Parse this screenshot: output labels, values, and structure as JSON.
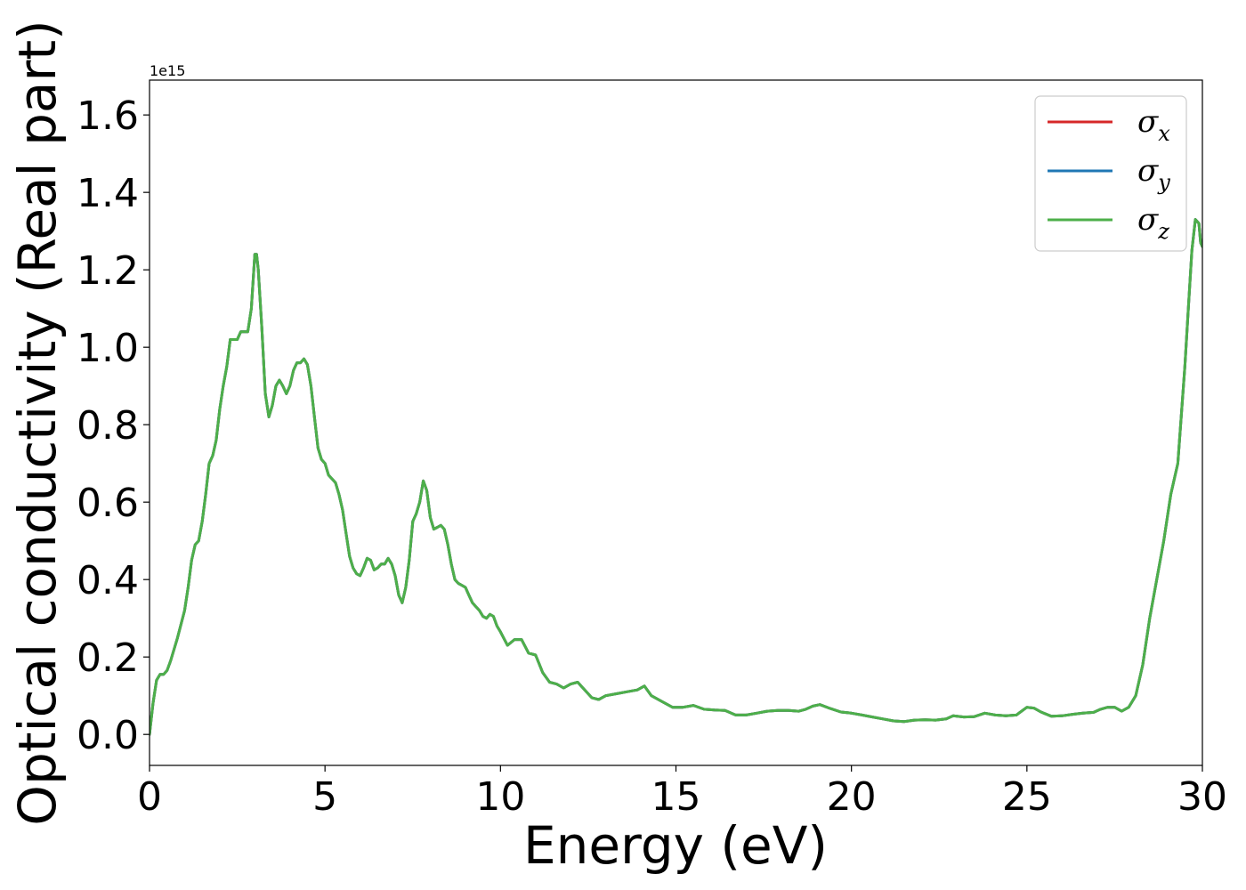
{
  "chart_data": {
    "type": "line",
    "xlabel": "Energy (eV)",
    "ylabel": "Optical conductivity (Real part)",
    "y_offset_text": "1e15",
    "xlim": [
      0,
      30
    ],
    "ylim": [
      -0.08,
      1.69
    ],
    "x_ticks": [
      0,
      5,
      10,
      15,
      20,
      25,
      30
    ],
    "y_ticks": [
      0.0,
      0.2,
      0.4,
      0.6,
      0.8,
      1.0,
      1.2,
      1.4,
      1.6
    ],
    "x_tick_labels": [
      "0",
      "5",
      "10",
      "15",
      "20",
      "25",
      "30"
    ],
    "y_tick_labels": [
      "0.0",
      "0.2",
      "0.4",
      "0.6",
      "0.8",
      "1.0",
      "1.2",
      "1.4",
      "1.6"
    ],
    "grid": false,
    "legend_position": "top-right",
    "x": [
      0.0,
      0.1,
      0.2,
      0.3,
      0.4,
      0.5,
      0.6,
      0.8,
      1.0,
      1.1,
      1.2,
      1.3,
      1.4,
      1.5,
      1.6,
      1.7,
      1.8,
      1.9,
      2.0,
      2.1,
      2.2,
      2.3,
      2.4,
      2.5,
      2.6,
      2.7,
      2.8,
      2.9,
      3.0,
      3.05,
      3.1,
      3.2,
      3.3,
      3.4,
      3.5,
      3.6,
      3.7,
      3.8,
      3.9,
      4.0,
      4.1,
      4.2,
      4.3,
      4.4,
      4.5,
      4.6,
      4.7,
      4.8,
      4.9,
      5.0,
      5.1,
      5.2,
      5.3,
      5.4,
      5.5,
      5.6,
      5.7,
      5.8,
      5.9,
      6.0,
      6.1,
      6.2,
      6.3,
      6.4,
      6.5,
      6.6,
      6.7,
      6.8,
      6.9,
      7.0,
      7.1,
      7.2,
      7.3,
      7.4,
      7.5,
      7.6,
      7.7,
      7.8,
      7.9,
      8.0,
      8.1,
      8.2,
      8.3,
      8.4,
      8.5,
      8.6,
      8.7,
      8.8,
      8.9,
      9.0,
      9.1,
      9.2,
      9.3,
      9.4,
      9.5,
      9.6,
      9.7,
      9.8,
      9.9,
      10.0,
      10.2,
      10.4,
      10.6,
      10.8,
      11.0,
      11.2,
      11.4,
      11.6,
      11.8,
      12.0,
      12.2,
      12.4,
      12.6,
      12.8,
      13.0,
      13.3,
      13.6,
      13.9,
      14.1,
      14.3,
      14.6,
      14.9,
      15.2,
      15.5,
      15.8,
      16.1,
      16.4,
      16.7,
      17.0,
      17.3,
      17.6,
      17.9,
      18.2,
      18.5,
      18.7,
      18.9,
      19.1,
      19.4,
      19.7,
      20.0,
      20.3,
      20.6,
      20.9,
      21.2,
      21.5,
      21.8,
      22.1,
      22.4,
      22.7,
      22.9,
      23.2,
      23.5,
      23.8,
      24.1,
      24.4,
      24.7,
      25.0,
      25.2,
      25.4,
      25.7,
      26.0,
      26.3,
      26.6,
      26.9,
      27.1,
      27.3,
      27.5,
      27.7,
      27.9,
      28.1,
      28.3,
      28.5,
      28.7,
      28.9,
      29.1,
      29.3,
      29.5,
      29.6,
      29.7,
      29.8,
      29.9,
      29.95,
      30.0
    ],
    "series": [
      {
        "name": "σx",
        "color": "#d62728",
        "values": [
          0.0,
          0.08,
          0.14,
          0.155,
          0.155,
          0.165,
          0.19,
          0.25,
          0.32,
          0.38,
          0.45,
          0.49,
          0.5,
          0.55,
          0.62,
          0.7,
          0.72,
          0.76,
          0.84,
          0.9,
          0.95,
          1.02,
          1.02,
          1.02,
          1.04,
          1.04,
          1.04,
          1.1,
          1.24,
          1.24,
          1.2,
          1.05,
          0.88,
          0.82,
          0.85,
          0.9,
          0.915,
          0.9,
          0.88,
          0.9,
          0.94,
          0.96,
          0.96,
          0.97,
          0.955,
          0.9,
          0.82,
          0.74,
          0.71,
          0.7,
          0.67,
          0.66,
          0.65,
          0.62,
          0.58,
          0.52,
          0.46,
          0.43,
          0.415,
          0.41,
          0.43,
          0.455,
          0.45,
          0.425,
          0.43,
          0.44,
          0.44,
          0.455,
          0.44,
          0.41,
          0.36,
          0.34,
          0.38,
          0.45,
          0.55,
          0.57,
          0.6,
          0.655,
          0.63,
          0.56,
          0.53,
          0.535,
          0.54,
          0.53,
          0.49,
          0.44,
          0.4,
          0.39,
          0.385,
          0.38,
          0.36,
          0.34,
          0.33,
          0.32,
          0.305,
          0.3,
          0.31,
          0.305,
          0.28,
          0.265,
          0.23,
          0.245,
          0.245,
          0.21,
          0.205,
          0.16,
          0.135,
          0.13,
          0.12,
          0.13,
          0.135,
          0.115,
          0.095,
          0.09,
          0.1,
          0.105,
          0.11,
          0.115,
          0.125,
          0.1,
          0.085,
          0.07,
          0.07,
          0.075,
          0.065,
          0.063,
          0.062,
          0.05,
          0.05,
          0.055,
          0.06,
          0.062,
          0.062,
          0.06,
          0.065,
          0.073,
          0.077,
          0.067,
          0.058,
          0.055,
          0.05,
          0.045,
          0.04,
          0.035,
          0.033,
          0.037,
          0.038,
          0.037,
          0.04,
          0.048,
          0.045,
          0.046,
          0.055,
          0.05,
          0.048,
          0.05,
          0.07,
          0.068,
          0.058,
          0.047,
          0.048,
          0.052,
          0.055,
          0.057,
          0.065,
          0.07,
          0.07,
          0.06,
          0.07,
          0.1,
          0.18,
          0.3,
          0.4,
          0.5,
          0.62,
          0.7,
          0.95,
          1.1,
          1.25,
          1.33,
          1.32,
          1.27,
          1.26
        ]
      },
      {
        "name": "σy",
        "color": "#1f77b4",
        "values": [
          0.0,
          0.08,
          0.14,
          0.155,
          0.155,
          0.165,
          0.19,
          0.25,
          0.32,
          0.38,
          0.45,
          0.49,
          0.5,
          0.55,
          0.62,
          0.7,
          0.72,
          0.76,
          0.84,
          0.9,
          0.95,
          1.02,
          1.02,
          1.02,
          1.04,
          1.04,
          1.04,
          1.1,
          1.24,
          1.24,
          1.2,
          1.05,
          0.88,
          0.82,
          0.85,
          0.9,
          0.915,
          0.9,
          0.88,
          0.9,
          0.94,
          0.96,
          0.96,
          0.97,
          0.955,
          0.9,
          0.82,
          0.74,
          0.71,
          0.7,
          0.67,
          0.66,
          0.65,
          0.62,
          0.58,
          0.52,
          0.46,
          0.43,
          0.415,
          0.41,
          0.43,
          0.455,
          0.45,
          0.425,
          0.43,
          0.44,
          0.44,
          0.455,
          0.44,
          0.41,
          0.36,
          0.34,
          0.38,
          0.45,
          0.55,
          0.57,
          0.6,
          0.655,
          0.63,
          0.56,
          0.53,
          0.535,
          0.54,
          0.53,
          0.49,
          0.44,
          0.4,
          0.39,
          0.385,
          0.38,
          0.36,
          0.34,
          0.33,
          0.32,
          0.305,
          0.3,
          0.31,
          0.305,
          0.28,
          0.265,
          0.23,
          0.245,
          0.245,
          0.21,
          0.205,
          0.16,
          0.135,
          0.13,
          0.12,
          0.13,
          0.135,
          0.115,
          0.095,
          0.09,
          0.1,
          0.105,
          0.11,
          0.115,
          0.125,
          0.1,
          0.085,
          0.07,
          0.07,
          0.075,
          0.065,
          0.063,
          0.062,
          0.05,
          0.05,
          0.055,
          0.06,
          0.062,
          0.062,
          0.06,
          0.065,
          0.073,
          0.077,
          0.067,
          0.058,
          0.055,
          0.05,
          0.045,
          0.04,
          0.035,
          0.033,
          0.037,
          0.038,
          0.037,
          0.04,
          0.048,
          0.045,
          0.046,
          0.055,
          0.05,
          0.048,
          0.05,
          0.07,
          0.068,
          0.058,
          0.047,
          0.048,
          0.052,
          0.055,
          0.057,
          0.065,
          0.07,
          0.07,
          0.06,
          0.07,
          0.1,
          0.18,
          0.3,
          0.4,
          0.5,
          0.62,
          0.7,
          0.95,
          1.1,
          1.25,
          1.33,
          1.32,
          1.27,
          1.26
        ]
      },
      {
        "name": "σz",
        "color": "#4daf4a",
        "values": [
          0.0,
          0.08,
          0.14,
          0.155,
          0.155,
          0.165,
          0.19,
          0.25,
          0.32,
          0.38,
          0.45,
          0.49,
          0.5,
          0.55,
          0.62,
          0.7,
          0.72,
          0.76,
          0.84,
          0.9,
          0.95,
          1.02,
          1.02,
          1.02,
          1.04,
          1.04,
          1.04,
          1.1,
          1.24,
          1.24,
          1.2,
          1.05,
          0.88,
          0.82,
          0.85,
          0.9,
          0.915,
          0.9,
          0.88,
          0.9,
          0.94,
          0.96,
          0.96,
          0.97,
          0.955,
          0.9,
          0.82,
          0.74,
          0.71,
          0.7,
          0.67,
          0.66,
          0.65,
          0.62,
          0.58,
          0.52,
          0.46,
          0.43,
          0.415,
          0.41,
          0.43,
          0.455,
          0.45,
          0.425,
          0.43,
          0.44,
          0.44,
          0.455,
          0.44,
          0.41,
          0.36,
          0.34,
          0.38,
          0.45,
          0.55,
          0.57,
          0.6,
          0.655,
          0.63,
          0.56,
          0.53,
          0.535,
          0.54,
          0.53,
          0.49,
          0.44,
          0.4,
          0.39,
          0.385,
          0.38,
          0.36,
          0.34,
          0.33,
          0.32,
          0.305,
          0.3,
          0.31,
          0.305,
          0.28,
          0.265,
          0.23,
          0.245,
          0.245,
          0.21,
          0.205,
          0.16,
          0.135,
          0.13,
          0.12,
          0.13,
          0.135,
          0.115,
          0.095,
          0.09,
          0.1,
          0.105,
          0.11,
          0.115,
          0.125,
          0.1,
          0.085,
          0.07,
          0.07,
          0.075,
          0.065,
          0.063,
          0.062,
          0.05,
          0.05,
          0.055,
          0.06,
          0.062,
          0.062,
          0.06,
          0.065,
          0.073,
          0.077,
          0.067,
          0.058,
          0.055,
          0.05,
          0.045,
          0.04,
          0.035,
          0.033,
          0.037,
          0.038,
          0.037,
          0.04,
          0.048,
          0.045,
          0.046,
          0.055,
          0.05,
          0.048,
          0.05,
          0.07,
          0.068,
          0.058,
          0.047,
          0.048,
          0.052,
          0.055,
          0.057,
          0.065,
          0.07,
          0.07,
          0.06,
          0.07,
          0.1,
          0.18,
          0.3,
          0.4,
          0.5,
          0.62,
          0.7,
          0.95,
          1.1,
          1.25,
          1.33,
          1.32,
          1.27,
          1.26
        ]
      }
    ],
    "legend": {
      "entries": [
        {
          "symbol": "σ",
          "sub": "x"
        },
        {
          "symbol": "σ",
          "sub": "y"
        },
        {
          "symbol": "σ",
          "sub": "z"
        }
      ]
    }
  }
}
